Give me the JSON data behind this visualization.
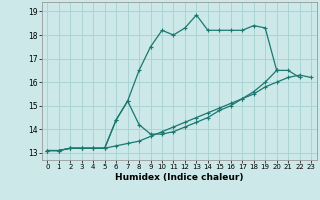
{
  "xlabel": "Humidex (Indice chaleur)",
  "bg_color": "#cce8e8",
  "grid_color": "#aad4d4",
  "line_color": "#1a7870",
  "xlim": [
    -0.5,
    23.5
  ],
  "ylim": [
    12.7,
    19.4
  ],
  "xticks": [
    0,
    1,
    2,
    3,
    4,
    5,
    6,
    7,
    8,
    9,
    10,
    11,
    12,
    13,
    14,
    15,
    16,
    17,
    18,
    19,
    20,
    21,
    22,
    23
  ],
  "yticks": [
    13,
    14,
    15,
    16,
    17,
    18,
    19
  ],
  "line1_x": [
    0,
    1,
    2,
    3,
    4,
    5,
    6,
    7,
    8,
    9,
    10,
    11,
    12,
    13,
    14,
    15,
    16,
    17,
    18,
    19,
    20,
    21,
    22
  ],
  "line1_y": [
    13.1,
    13.1,
    13.2,
    13.2,
    13.2,
    13.2,
    14.4,
    15.2,
    16.5,
    17.5,
    18.2,
    18.0,
    18.3,
    18.85,
    18.2,
    18.2,
    18.2,
    18.2,
    18.4,
    18.3,
    16.5,
    16.5,
    16.2
  ],
  "line2_x": [
    0,
    1,
    2,
    3,
    4,
    5,
    6,
    7,
    8,
    9,
    10,
    11,
    12,
    13,
    14,
    15,
    16,
    17,
    18,
    19,
    20
  ],
  "line2_y": [
    13.1,
    13.1,
    13.2,
    13.2,
    13.2,
    13.2,
    14.4,
    15.2,
    14.2,
    13.8,
    13.8,
    13.9,
    14.1,
    14.3,
    14.5,
    14.8,
    15.0,
    15.3,
    15.6,
    16.0,
    16.5
  ],
  "line3_x": [
    0,
    1,
    2,
    3,
    4,
    5,
    6,
    7,
    8,
    9,
    10,
    11,
    12,
    13,
    14,
    15,
    16,
    17,
    18,
    19,
    20,
    21,
    22,
    23
  ],
  "line3_y": [
    13.1,
    13.1,
    13.2,
    13.2,
    13.2,
    13.2,
    13.3,
    13.4,
    13.5,
    13.7,
    13.9,
    14.1,
    14.3,
    14.5,
    14.7,
    14.9,
    15.1,
    15.3,
    15.5,
    15.8,
    16.0,
    16.2,
    16.3,
    16.2
  ]
}
